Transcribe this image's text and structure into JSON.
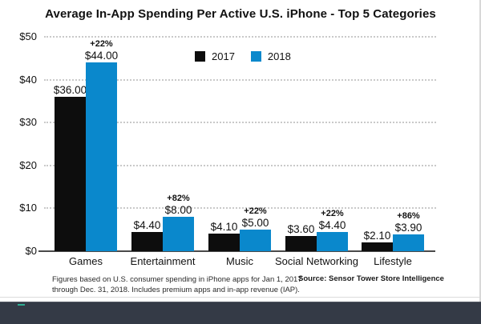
{
  "title": "Average In-App Spending Per Active U.S. iPhone - Top 5 Categories",
  "legend": [
    {
      "label": "2017",
      "color": "#0d0d0d"
    },
    {
      "label": "2018",
      "color": "#0a88cc"
    }
  ],
  "footnote_line1": "Figures based on U.S. consumer spending in iPhone apps for Jan 1, 2017",
  "footnote_line2": "through Dec. 31, 2018. Includes premium apps and in-app revenue (IAP).",
  "source": "Source: Sensor Tower Store Intelligence",
  "colors": {
    "bar_2017": "#0d0d0d",
    "bar_2018": "#0a88cc",
    "gridline": "#c9c9c9",
    "axis": "#4a4a4a",
    "player_bar": "#343a46",
    "progress_teal": "#2fae92"
  },
  "chart_data": {
    "type": "bar",
    "title": "Average In-App Spending Per Active U.S. iPhone - Top 5 Categories",
    "categories": [
      "Games",
      "Entertainment",
      "Music",
      "Social Networking",
      "Lifestyle"
    ],
    "series": [
      {
        "name": "2017",
        "color": "#0d0d0d",
        "values": [
          36.0,
          4.4,
          4.1,
          3.6,
          2.1
        ],
        "labels": [
          "$36.00",
          "$4.40",
          "$4.10",
          "$3.60",
          "$2.10"
        ]
      },
      {
        "name": "2018",
        "color": "#0a88cc",
        "values": [
          44.0,
          8.0,
          5.0,
          4.4,
          3.9
        ],
        "labels": [
          "$44.00",
          "$8.00",
          "$5.00",
          "$4.40",
          "$3.90"
        ]
      }
    ],
    "pct_change": [
      "+22%",
      "+82%",
      "+22%",
      "+22%",
      "+86%"
    ],
    "y_ticks": [
      "$0",
      "$10",
      "$20",
      "$30",
      "$40",
      "$50"
    ],
    "ylim": [
      0,
      50
    ],
    "grid": "horizontal-dotted",
    "legend_position": "top-center"
  }
}
